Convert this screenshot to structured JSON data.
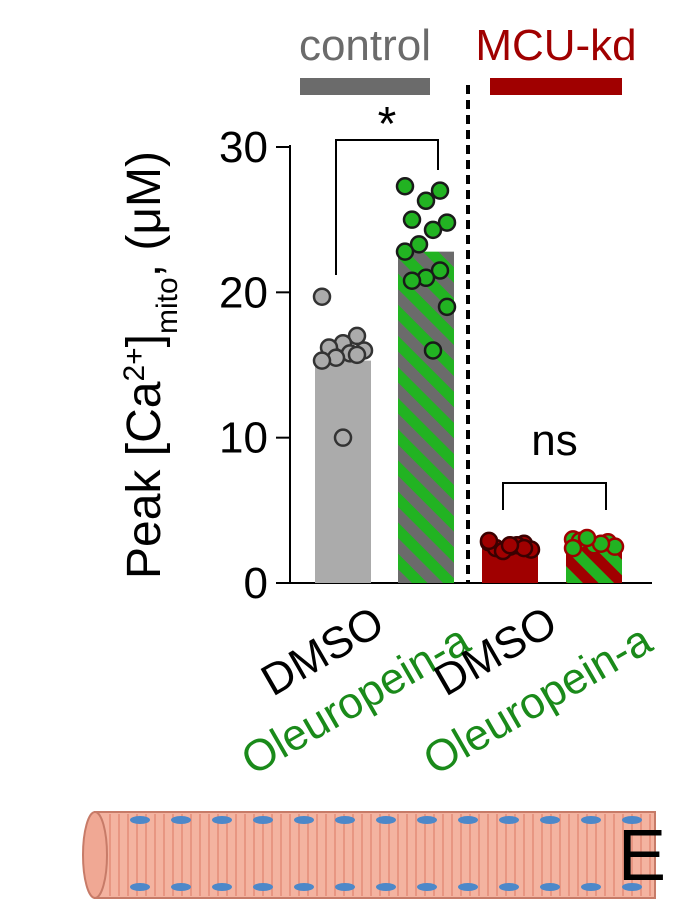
{
  "chart_data": {
    "type": "bar",
    "ylabel_parts": [
      "Peak [Ca",
      "2+",
      "]",
      "mito",
      ", (μM)"
    ],
    "groups": [
      {
        "name": "control",
        "color": "#6b6b6b"
      },
      {
        "name": "MCU-kd",
        "color": "#a00000"
      }
    ],
    "categories": [
      "DMSO",
      "Oleuropein-a",
      "DMSO",
      "Oleuropein-a"
    ],
    "category_colors": [
      "#000000",
      "#1a8a1a",
      "#000000",
      "#1a8a1a"
    ],
    "values": [
      15.3,
      22.8,
      2.5,
      2.7
    ],
    "bar_colors": [
      "#ababab",
      "#22b322",
      "#a00000",
      "#22b322"
    ],
    "stripe_colors": [
      null,
      "#6b6b6b",
      null,
      "#a00000"
    ],
    "points": [
      [
        19.7,
        17.0,
        16.5,
        16.2,
        16.0,
        15.8,
        15.5,
        15.3,
        15.7,
        10.0
      ],
      [
        27.3,
        27.0,
        26.3,
        25.0,
        24.8,
        24.3,
        23.3,
        22.8,
        21.5,
        21.0,
        20.8,
        19.0,
        16.0
      ],
      [
        2.8,
        2.7,
        2.5,
        2.4,
        2.3,
        2.6,
        2.2,
        2.9,
        2.4,
        2.6
      ],
      [
        3.0,
        2.8,
        2.6,
        2.9,
        2.5,
        2.7,
        3.1,
        2.4
      ]
    ],
    "point_colors": [
      "#ababab",
      "#22b322",
      "#a00000",
      "#22b322"
    ],
    "point_edge_colors": [
      "#333333",
      "#1a1a1a",
      "#3a0000",
      "#a00000"
    ],
    "significance": [
      {
        "text": "*",
        "between": [
          0,
          1
        ]
      },
      {
        "text": "ns",
        "between": [
          2,
          3
        ]
      }
    ],
    "ylim": [
      0,
      30
    ],
    "yticks": [
      0,
      10,
      20,
      30
    ]
  },
  "figure_text": "E"
}
